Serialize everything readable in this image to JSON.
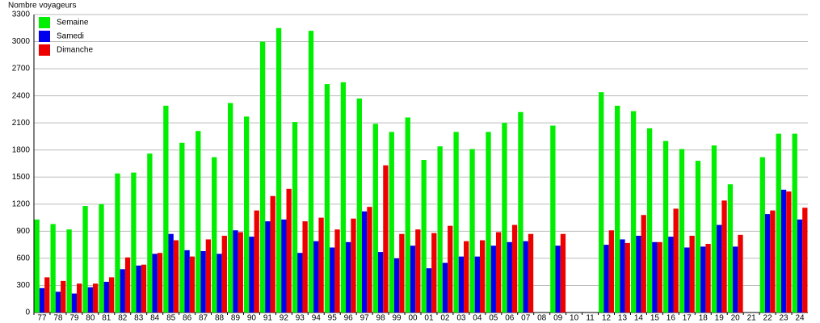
{
  "chart_data": {
    "type": "bar",
    "y_label": "Nombre voyageurs",
    "categories": [
      "77",
      "78",
      "79",
      "80",
      "81",
      "82",
      "83",
      "84",
      "85",
      "86",
      "87",
      "88",
      "89",
      "90",
      "91",
      "92",
      "93",
      "94",
      "95",
      "96",
      "97",
      "98",
      "99",
      "00",
      "01",
      "02",
      "03",
      "04",
      "05",
      "06",
      "07",
      "08",
      "09",
      "10",
      "11",
      "12",
      "13",
      "14",
      "15",
      "16",
      "17",
      "18",
      "19",
      "20",
      "21",
      "22",
      "23",
      "24"
    ],
    "series": [
      {
        "name": "Semaine",
        "color": "#00ee00",
        "values": [
          1030,
          980,
          920,
          1180,
          1200,
          1540,
          1550,
          1760,
          2290,
          1880,
          2010,
          1720,
          2320,
          2170,
          3000,
          3150,
          2110,
          3120,
          2530,
          2550,
          2370,
          2090,
          2000,
          2160,
          1690,
          1840,
          2000,
          1810,
          2000,
          2100,
          2220,
          null,
          2070,
          null,
          null,
          2440,
          2290,
          2230,
          2040,
          1900,
          1810,
          1680,
          1850,
          1420,
          null,
          1720,
          1980,
          1980
        ]
      },
      {
        "name": "Samedi",
        "color": "#0000ee",
        "values": [
          270,
          230,
          210,
          280,
          340,
          480,
          520,
          650,
          870,
          690,
          680,
          650,
          910,
          840,
          1010,
          1030,
          660,
          790,
          720,
          780,
          1120,
          670,
          600,
          740,
          490,
          550,
          620,
          620,
          740,
          780,
          790,
          null,
          740,
          null,
          null,
          750,
          810,
          850,
          780,
          840,
          720,
          730,
          970,
          730,
          null,
          1090,
          1360,
          1030
        ]
      },
      {
        "name": "Dimanche",
        "color": "#ee0000",
        "values": [
          390,
          350,
          320,
          320,
          390,
          610,
          530,
          660,
          800,
          620,
          810,
          850,
          890,
          1130,
          1290,
          1370,
          1010,
          1050,
          920,
          1040,
          1170,
          1630,
          870,
          920,
          880,
          960,
          790,
          800,
          890,
          970,
          870,
          null,
          870,
          null,
          null,
          910,
          770,
          1080,
          780,
          1150,
          850,
          760,
          1240,
          860,
          null,
          1130,
          1340,
          1160
        ]
      }
    ],
    "ylim": [
      0,
      3300
    ],
    "yticks": [
      0,
      300,
      600,
      900,
      1200,
      1500,
      1800,
      2100,
      2400,
      2700,
      3000,
      3300
    ],
    "grid": true,
    "legend": "top-left"
  }
}
